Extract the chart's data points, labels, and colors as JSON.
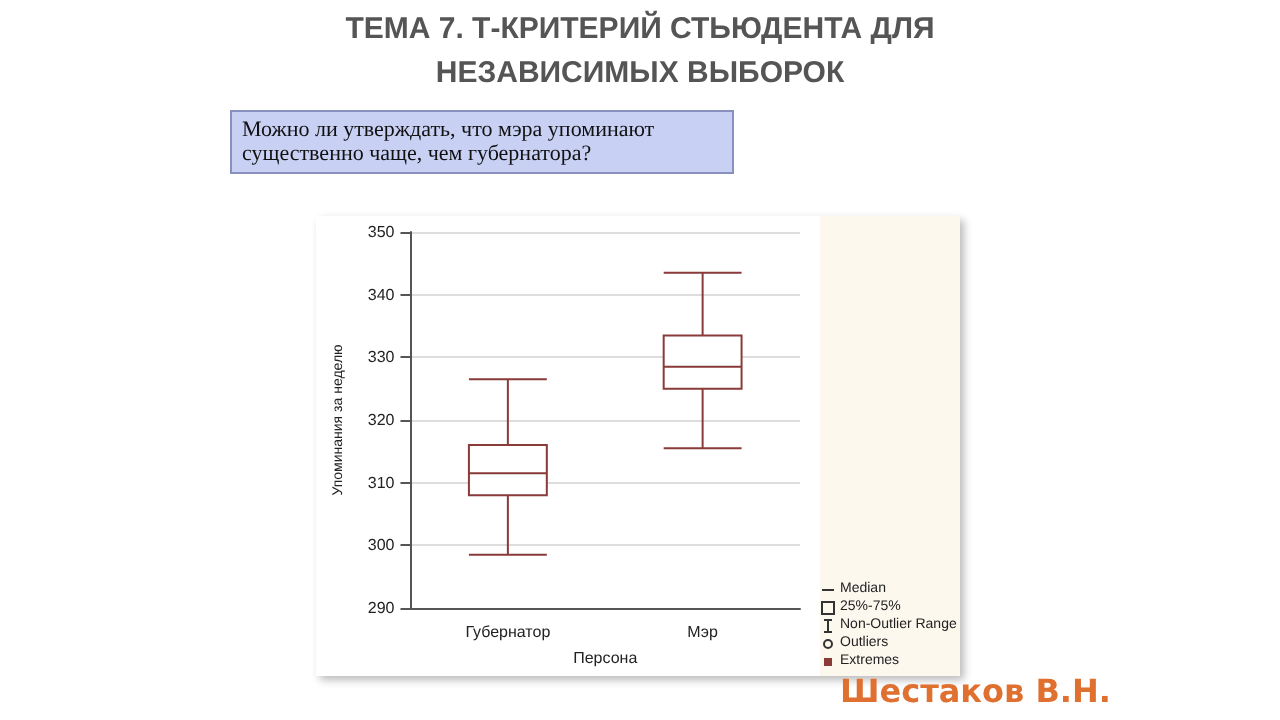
{
  "chart_data": {
    "type": "box",
    "title": "ТЕМА 7. Т-КРИТЕРИЙ СТЬЮДЕНТА ДЛЯ НЕЗАВИСИМЫХ ВЫБОРОК",
    "subtitle": "Можно ли утверждать, что мэра упоминают существенно чаще, чем губернатора?",
    "xlabel": "Персона",
    "ylabel": "Упоминания за неделю",
    "categories": [
      "Губернатор",
      "Мэр"
    ],
    "series": [
      {
        "color": "#8b3a3a",
        "boxes": [
          {
            "low": 298.5,
            "q1": 308,
            "median": 311.5,
            "q3": 316,
            "high": 326.5
          },
          {
            "low": 315.5,
            "q1": 325,
            "median": 328.5,
            "q3": 333.5,
            "high": 343.5
          }
        ]
      }
    ],
    "ylim": [
      290,
      350
    ],
    "yticks": [
      290,
      300,
      310,
      320,
      330,
      340,
      350
    ],
    "grid": "y",
    "annotations": [
      "Median",
      "25%-75%",
      "Non-Outlier Range",
      "Outliers",
      "Extremes",
      "Шестаков В.Н."
    ]
  }
}
